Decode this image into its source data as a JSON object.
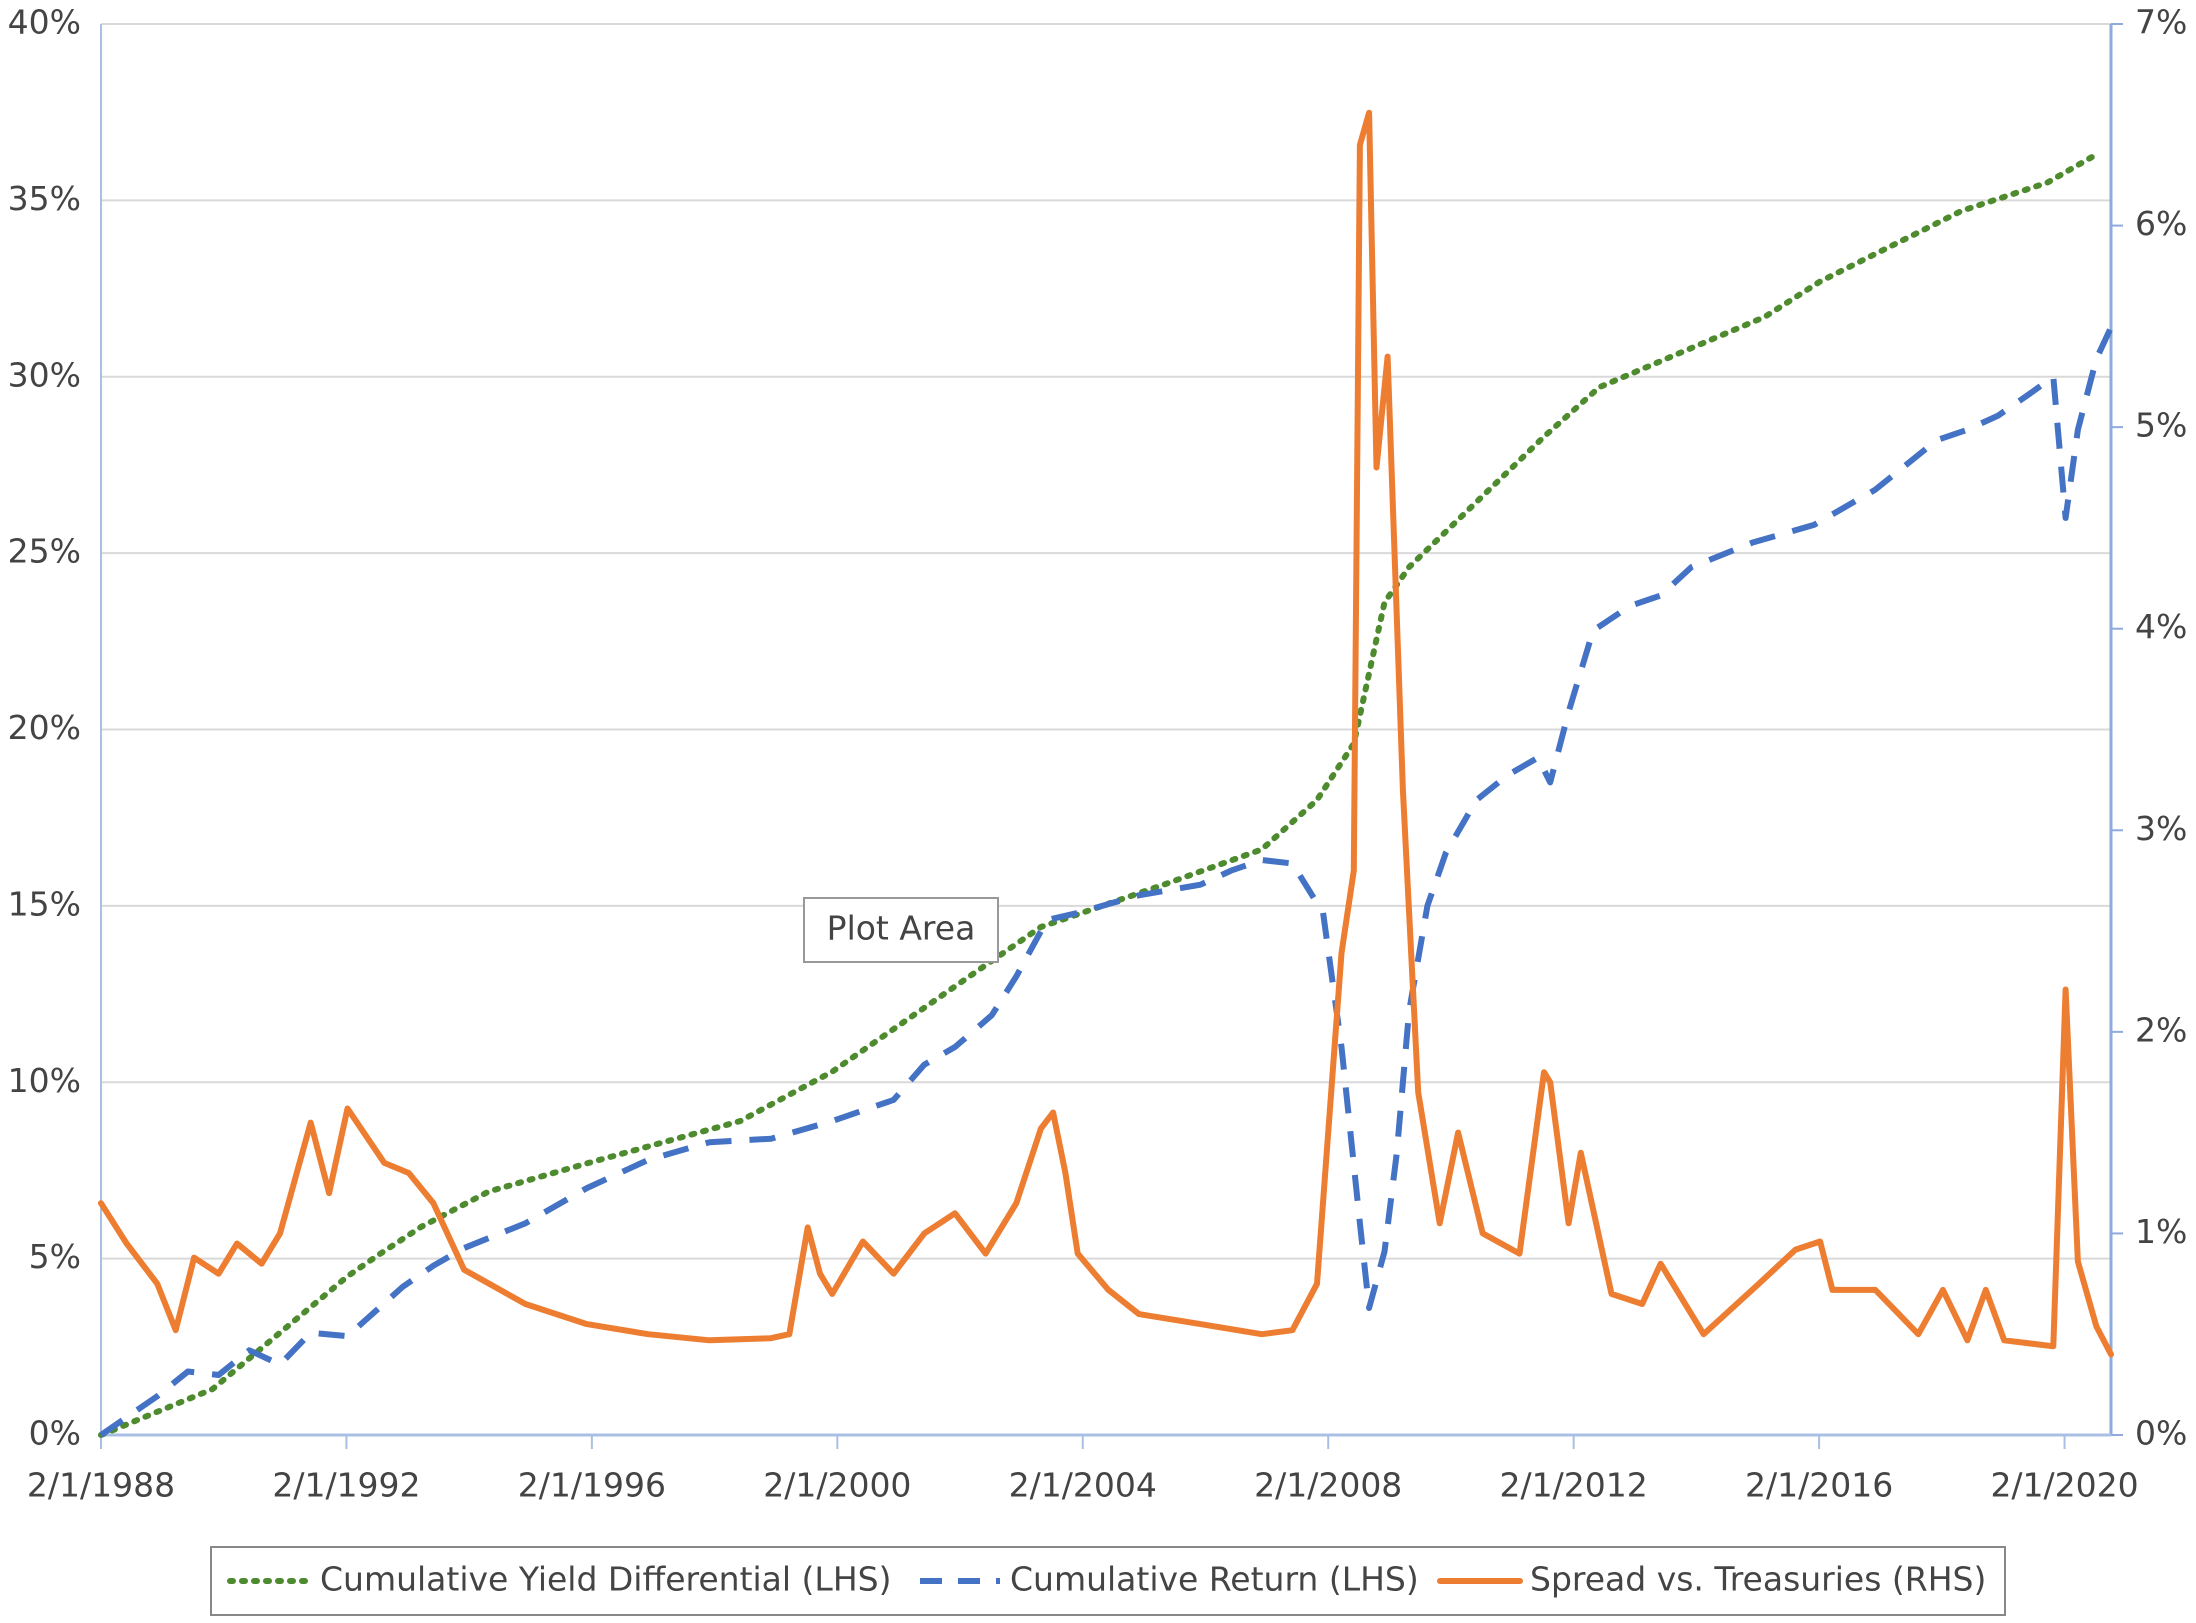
{
  "chart_data": {
    "type": "line",
    "xlim": [
      1988.083,
      2020.84
    ],
    "xticks": [
      {
        "value": 1988.083,
        "label": "2/1/1988"
      },
      {
        "value": 1992.083,
        "label": "2/1/1992"
      },
      {
        "value": 1996.083,
        "label": "2/1/1996"
      },
      {
        "value": 2000.083,
        "label": "2/1/2000"
      },
      {
        "value": 2004.083,
        "label": "2/1/2004"
      },
      {
        "value": 2008.083,
        "label": "2/1/2008"
      },
      {
        "value": 2012.083,
        "label": "2/1/2012"
      },
      {
        "value": 2016.083,
        "label": "2/1/2016"
      },
      {
        "value": 2020.083,
        "label": "2/1/2020"
      }
    ],
    "ylim": [
      0,
      40
    ],
    "yticks": [
      {
        "value": 0,
        "label": "0%"
      },
      {
        "value": 5,
        "label": "5%"
      },
      {
        "value": 10,
        "label": "10%"
      },
      {
        "value": 15,
        "label": "15%"
      },
      {
        "value": 20,
        "label": "20%"
      },
      {
        "value": 25,
        "label": "25%"
      },
      {
        "value": 30,
        "label": "30%"
      },
      {
        "value": 35,
        "label": "35%"
      },
      {
        "value": 40,
        "label": "40%"
      }
    ],
    "y2lim": [
      0,
      7
    ],
    "y2ticks": [
      {
        "value": 0,
        "label": "0%"
      },
      {
        "value": 1,
        "label": "1%"
      },
      {
        "value": 2,
        "label": "2%"
      },
      {
        "value": 3,
        "label": "3%"
      },
      {
        "value": 4,
        "label": "4%"
      },
      {
        "value": 5,
        "label": "5%"
      },
      {
        "value": 6,
        "label": "6%"
      },
      {
        "value": 7,
        "label": "7%"
      }
    ],
    "grid": true,
    "legend": "bottom",
    "annotation": "Plot Area",
    "series": [
      {
        "name": "Cumulative Yield Differential (LHS)",
        "color": "#4e8a2e",
        "dash": "dotted",
        "x": [
          1988.083,
          1989.9,
          1991,
          1992.1,
          1992.6,
          1993.3,
          1994.4,
          1996,
          1998.5,
          2000,
          2002.4,
          2003.4,
          2005.4,
          2007,
          2007.9,
          2008.5,
          2009,
          2009.4,
          2011.6,
          2012.5,
          2015.2,
          2016.1,
          2018.4,
          2019.8,
          2020.6
        ],
        "values": [
          0,
          1.3,
          2.9,
          4.5,
          5.1,
          5.9,
          6.9,
          7.7,
          8.9,
          10.3,
          13.2,
          14.4,
          15.6,
          16.6,
          18,
          19.6,
          23.6,
          24.6,
          28.3,
          29.7,
          31.7,
          32.7,
          34.7,
          35.5,
          36.3
        ]
      },
      {
        "name": "Cumulative Return (LHS)",
        "color": "#4472c4",
        "dash": "dashed",
        "x": [
          1988.083,
          1989,
          1989.5,
          1990,
          1990.5,
          1991,
          1991.5,
          1992.1,
          1993,
          1993.5,
          1994,
          1995,
          1996,
          1997,
          1998,
          1999,
          2000,
          2001,
          2001.5,
          2002,
          2002.6,
          2003,
          2003.5,
          2004,
          2005,
          2006,
          2006.5,
          2007,
          2007.5,
          2008,
          2008.3,
          2008.6,
          2008.75,
          2009,
          2009.2,
          2009.4,
          2009.7,
          2010,
          2010.5,
          2011,
          2011.5,
          2011.7,
          2012,
          2012.4,
          2013,
          2013.5,
          2014,
          2015,
          2016,
          2017,
          2018,
          2018.5,
          2019,
          2019.5,
          2019.9,
          2020.1,
          2020.3,
          2020.6,
          2020.84
        ],
        "values": [
          0,
          1.1,
          1.8,
          1.7,
          2.4,
          2.0,
          2.9,
          2.8,
          4.2,
          4.8,
          5.3,
          6.0,
          7.0,
          7.8,
          8.3,
          8.4,
          8.9,
          9.5,
          10.5,
          11.0,
          11.9,
          13.0,
          14.6,
          14.8,
          15.3,
          15.6,
          16.0,
          16.3,
          16.2,
          14.8,
          11.0,
          6.0,
          3.6,
          5.2,
          8.0,
          12.0,
          15.0,
          16.5,
          18.0,
          18.7,
          19.2,
          18.5,
          20.5,
          22.8,
          23.5,
          23.8,
          24.6,
          25.3,
          25.8,
          26.8,
          28.2,
          28.5,
          28.9,
          29.5,
          30.0,
          26.0,
          28.5,
          30.5,
          31.4
        ]
      },
      {
        "name": "Spread vs. Treasuries (RHS)",
        "color": "#ed7d31",
        "dash": "solid",
        "axis": "y2",
        "x": [
          1988.083,
          1988.5,
          1989,
          1989.3,
          1989.6,
          1990,
          1990.3,
          1990.7,
          1991,
          1991.5,
          1991.8,
          1992.1,
          1992.7,
          1993.1,
          1993.5,
          1994,
          1995,
          1996,
          1997,
          1998,
          1999,
          1999.3,
          1999.6,
          1999.8,
          2000,
          2000.5,
          2001,
          2001.5,
          2002,
          2002.5,
          2003,
          2003.4,
          2003.6,
          2003.8,
          2004,
          2004.5,
          2005,
          2006,
          2007,
          2007.5,
          2007.9,
          2008.3,
          2008.5,
          2008.6,
          2008.75,
          2008.87,
          2009.05,
          2009.3,
          2009.55,
          2009.9,
          2010.2,
          2010.6,
          2011.2,
          2011.6,
          2011.7,
          2012.0,
          2012.2,
          2012.7,
          2013.2,
          2013.5,
          2014.2,
          2015.1,
          2015.7,
          2016.1,
          2016.3,
          2017,
          2017.7,
          2018.1,
          2018.5,
          2018.8,
          2019.1,
          2019.9,
          2020.1,
          2020.3,
          2020.6,
          2020.84
        ],
        "values": [
          1.15,
          0.95,
          0.75,
          0.52,
          0.88,
          0.8,
          0.95,
          0.85,
          1.0,
          1.55,
          1.2,
          1.62,
          1.35,
          1.3,
          1.15,
          0.82,
          0.65,
          0.55,
          0.5,
          0.47,
          0.48,
          0.5,
          1.03,
          0.8,
          0.7,
          0.96,
          0.8,
          1.0,
          1.1,
          0.9,
          1.15,
          1.52,
          1.6,
          1.3,
          0.9,
          0.72,
          0.6,
          0.55,
          0.5,
          0.52,
          0.75,
          2.39,
          2.8,
          6.4,
          6.56,
          4.8,
          5.35,
          3.2,
          1.7,
          1.05,
          1.5,
          1.0,
          0.9,
          1.8,
          1.75,
          1.05,
          1.4,
          0.7,
          0.65,
          0.85,
          0.5,
          0.75,
          0.92,
          0.96,
          0.72,
          0.72,
          0.5,
          0.72,
          0.47,
          0.72,
          0.47,
          0.44,
          2.21,
          0.86,
          0.54,
          0.4
        ]
      }
    ]
  }
}
